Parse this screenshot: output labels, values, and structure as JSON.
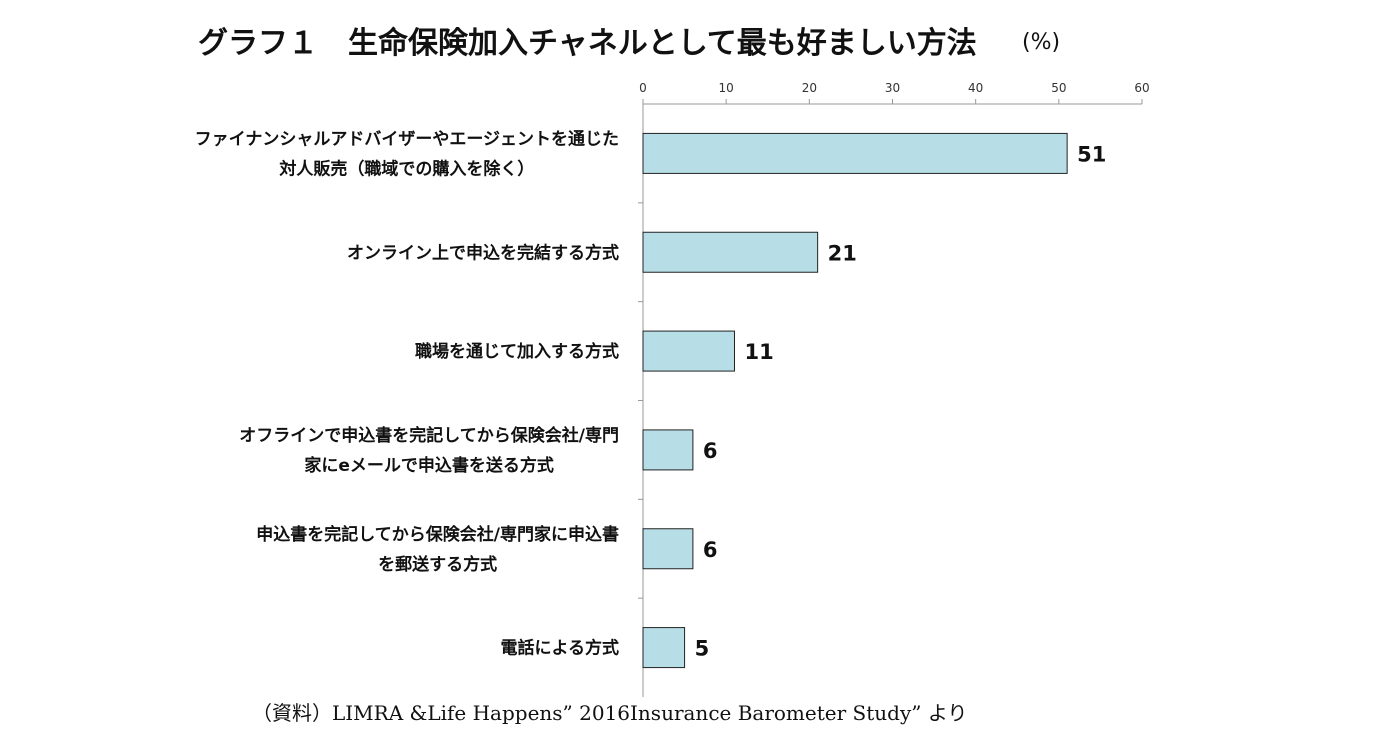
{
  "chart_data": {
    "type": "bar",
    "orientation": "horizontal",
    "title": "グラフ１　生命保険加入チャネルとして最も好ましい方法",
    "unit": "(%)",
    "categories": [
      [
        "ファイナンシャルアドバイザーやエージェントを通じた",
        "対人販売（職域での購入を除く）"
      ],
      [
        "オンライン上で申込を完結する方式"
      ],
      [
        "職場を通じて加入する方式"
      ],
      [
        "オフラインで申込書を完記してから保険会社/専門",
        "家にeメールで申込書を送る方式"
      ],
      [
        "申込書を完記してから保険会社/専門家に申込書",
        "を郵送する方式"
      ],
      [
        "電話による方式"
      ]
    ],
    "values": [
      51,
      21,
      11,
      6,
      6,
      5
    ],
    "value_labels": [
      "51",
      "21",
      "11",
      "6",
      "6",
      "5"
    ],
    "xlim": [
      0,
      60
    ],
    "xticks": [
      "0",
      "10",
      "20",
      "30",
      "40",
      "50",
      "60"
    ],
    "x_axis_position": "top",
    "grid": false,
    "bar_color": "#b7dde6",
    "bar_edge_color": "#222222",
    "source": "（資料）LIMRA &Life Happens” 2016Insurance Barometer Study” より"
  }
}
